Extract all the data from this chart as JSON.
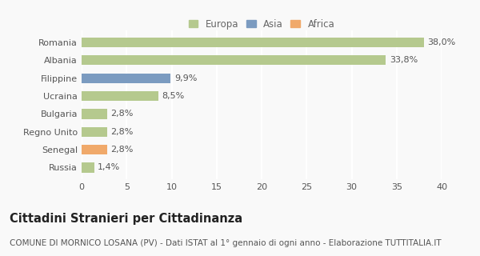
{
  "categories": [
    "Romania",
    "Albania",
    "Filippine",
    "Ucraina",
    "Bulgaria",
    "Regno Unito",
    "Senegal",
    "Russia"
  ],
  "values": [
    38.0,
    33.8,
    9.9,
    8.5,
    2.8,
    2.8,
    2.8,
    1.4
  ],
  "colors": [
    "#b5c98e",
    "#b5c98e",
    "#7b9bc0",
    "#b5c98e",
    "#b5c98e",
    "#b5c98e",
    "#f0a96a",
    "#b5c98e"
  ],
  "labels": [
    "38,0%",
    "33,8%",
    "9,9%",
    "8,5%",
    "2,8%",
    "2,8%",
    "2,8%",
    "1,4%"
  ],
  "legend": [
    {
      "label": "Europa",
      "color": "#b5c98e"
    },
    {
      "label": "Asia",
      "color": "#7b9bc0"
    },
    {
      "label": "Africa",
      "color": "#f0a96a"
    }
  ],
  "xlim": [
    0,
    40
  ],
  "xticks": [
    0,
    5,
    10,
    15,
    20,
    25,
    30,
    35,
    40
  ],
  "title": "Cittadini Stranieri per Cittadinanza",
  "subtitle": "COMUNE DI MORNICO LOSANA (PV) - Dati ISTAT al 1° gennaio di ogni anno - Elaborazione TUTTITALIA.IT",
  "background_color": "#f9f9f9",
  "grid_color": "#ffffff",
  "title_fontsize": 10.5,
  "subtitle_fontsize": 7.5,
  "tick_fontsize": 8,
  "label_fontsize": 8,
  "legend_fontsize": 8.5
}
